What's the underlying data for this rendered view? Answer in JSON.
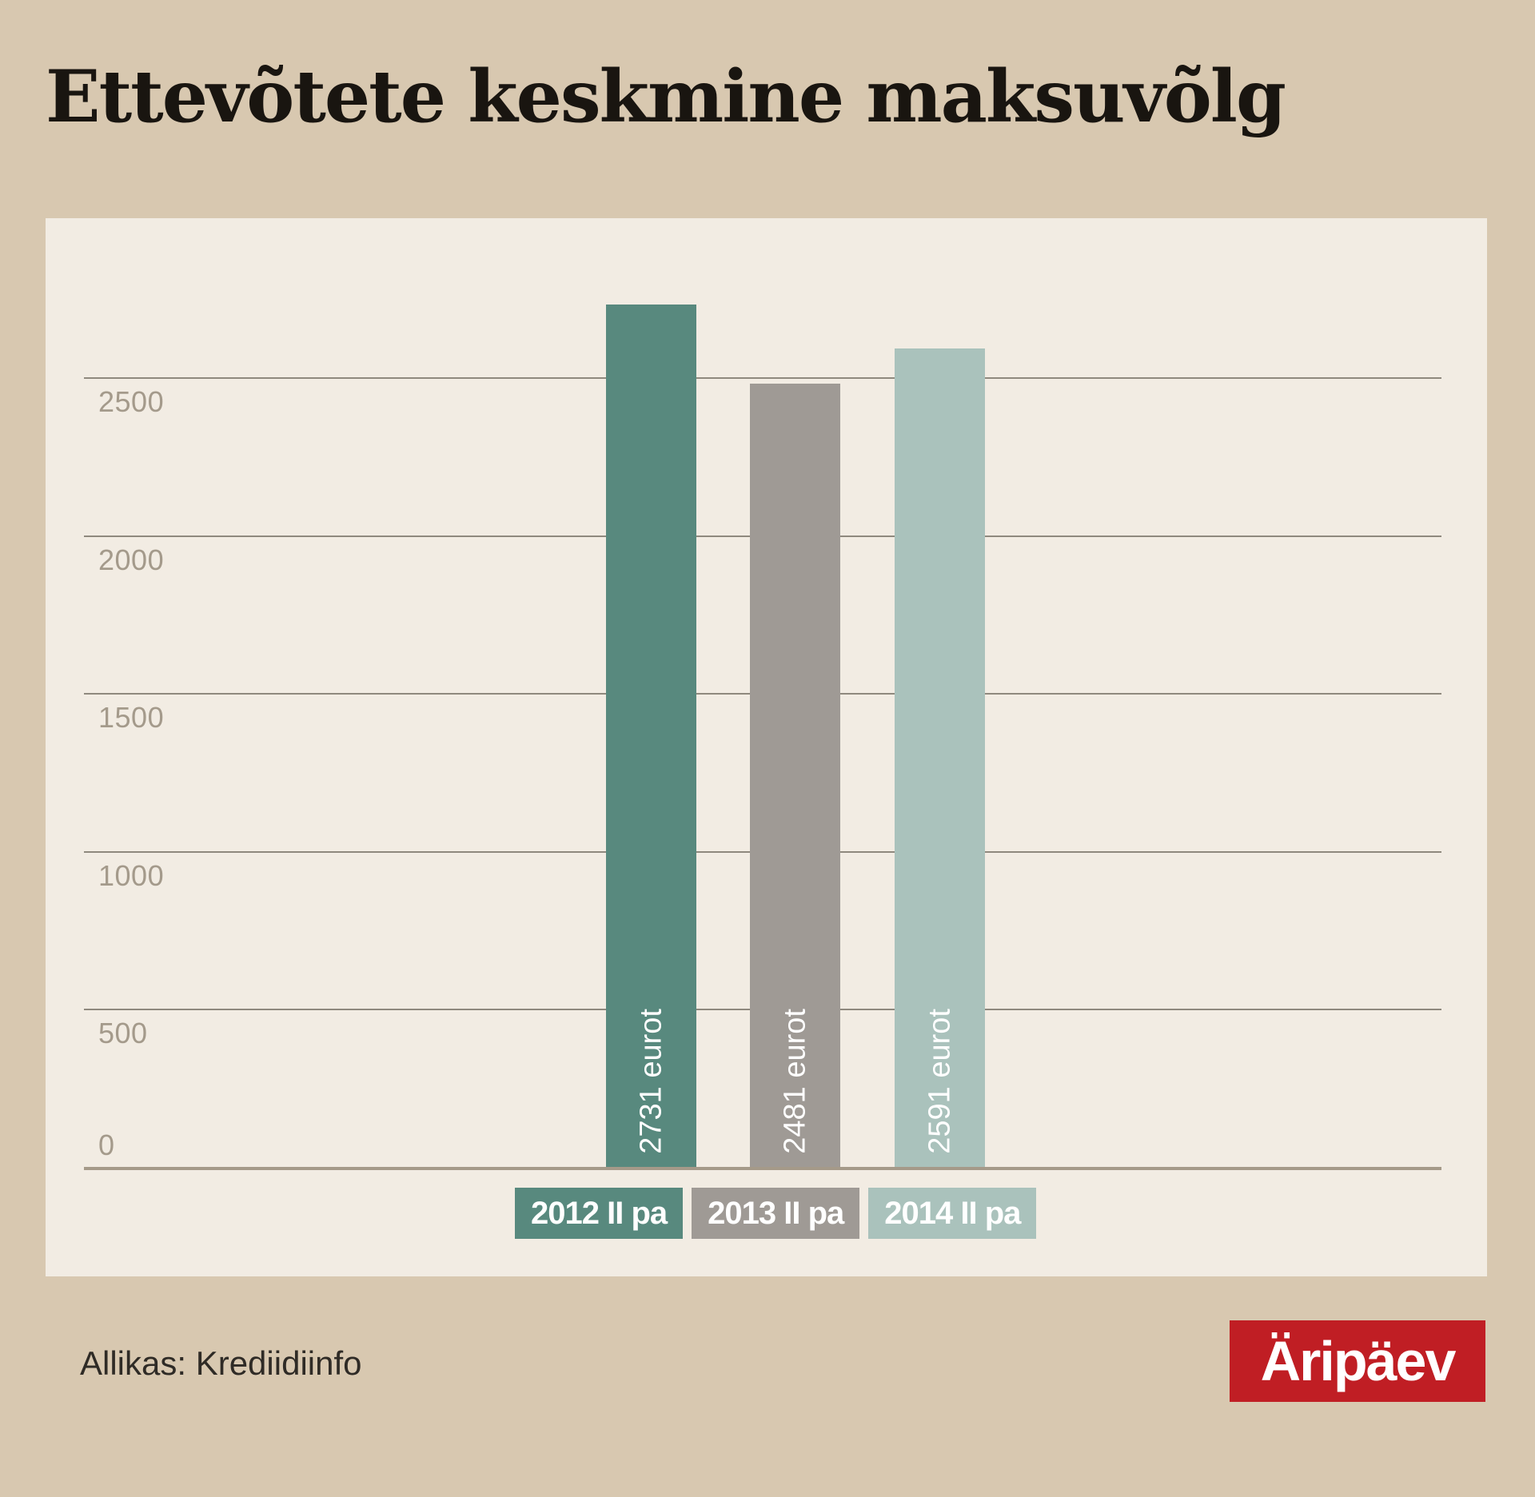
{
  "title": "Ettevõtete keskmine maksuvõlg",
  "source": "Allikas: Krediidiinfo",
  "logo": {
    "text": "Äripäev"
  },
  "colors": {
    "background": "#d8c8b0",
    "panel": "#f2ece3",
    "gridline": "#8f897e",
    "axis_line": "#a59a89",
    "tick_label": "#a49a8b",
    "title_text": "#191510",
    "source_text": "#2f2b26",
    "logo_red": "#c01e24",
    "value_label": "#ffffff"
  },
  "chart_data": {
    "type": "bar",
    "title": "Ettevõtete keskmine maksuvõlg",
    "categories": [
      "2012 II pa",
      "2013 II pa",
      "2014 II pa"
    ],
    "values": [
      2731,
      2481,
      2591
    ],
    "bar_labels": [
      "2731 eurot",
      "2481 eurot",
      "2591 eurot"
    ],
    "series_colors": [
      "#58897e",
      "#9f9a95",
      "#aac2bc"
    ],
    "unit": "eurot",
    "xlabel": "",
    "ylabel": "",
    "yticks": [
      0,
      500,
      1000,
      1500,
      2000,
      2500
    ],
    "ylim": [
      0,
      3000
    ],
    "grid": true,
    "legend_position": "bottom",
    "source": "Allikas: Krediidiinfo"
  }
}
